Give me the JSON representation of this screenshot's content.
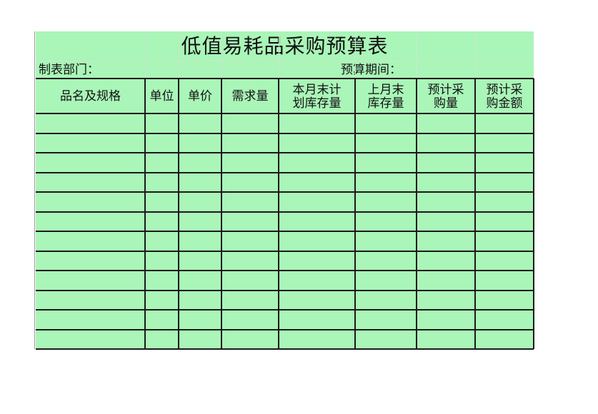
{
  "title": "低值易耗品采购预算表",
  "info": {
    "department_label": "制表部门：",
    "period_label": "预算期间："
  },
  "columns": [
    "品名及规格",
    "单位",
    "单价",
    "需求量",
    "本月末计划库存量",
    "上月末库存量",
    "预计采购量",
    "预计采购金额"
  ],
  "column_lines": [
    [
      "品名及规格"
    ],
    [
      "单位"
    ],
    [
      "单价"
    ],
    [
      "需求量"
    ],
    [
      "本月末计",
      "划库存量"
    ],
    [
      "上月末",
      "库存量"
    ],
    [
      "预计采",
      "购量"
    ],
    [
      "预计采",
      "购金额"
    ]
  ],
  "row_count": 12,
  "colors": {
    "fill": "#aaf5b8",
    "border": "#1a1a1a"
  }
}
